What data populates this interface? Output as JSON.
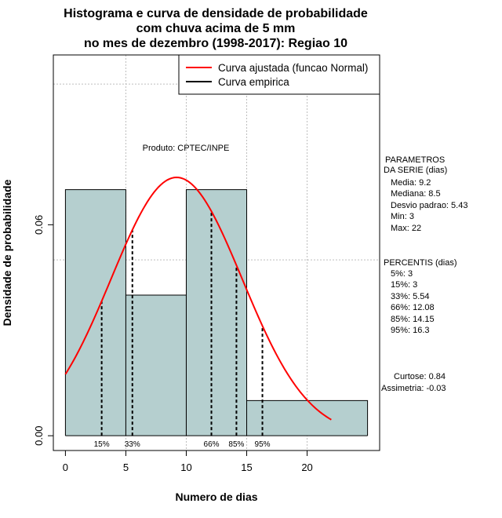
{
  "chart_data": {
    "type": "histogram",
    "title_lines": [
      "Histograma e curva de densidade de probabilidade",
      "com chuva acima de 5 mm",
      "no mes de dezembro (1998-2017): Regiao 10"
    ],
    "xlabel": "Numero de dias",
    "ylabel": "Densidade de probabilidade",
    "xlim": [
      -1,
      26
    ],
    "ylim": [
      -0.0042,
      0.1083
    ],
    "x_ticks": [
      0,
      5,
      10,
      15,
      20
    ],
    "x_tick_labels": [
      "0",
      "5",
      "10",
      "15",
      "20"
    ],
    "y_ticks": [
      0.0,
      0.06
    ],
    "y_tick_labels": [
      "0.00",
      "0.06"
    ],
    "grid_x": [
      5,
      10,
      15,
      20
    ],
    "grid_y": [
      0.05,
      0.1
    ],
    "bins": [
      {
        "start": 0,
        "end": 5,
        "density": 0.07
      },
      {
        "start": 5,
        "end": 10,
        "density": 0.04
      },
      {
        "start": 10,
        "end": 15,
        "density": 0.07
      },
      {
        "start": 15,
        "end": 25,
        "density": 0.01
      }
    ],
    "normal_curve": {
      "mean": 9.2,
      "sd": 5.43,
      "x_from": 0,
      "x_to": 22,
      "color": "#ff0000"
    },
    "bar_fill": "#b5cfcf",
    "percentiles": [
      {
        "label": "15%",
        "x": 3.0
      },
      {
        "label": "33%",
        "x": 5.54
      },
      {
        "label": "66%",
        "x": 12.08
      },
      {
        "label": "85%",
        "x": 14.15
      },
      {
        "label": "95%",
        "x": 16.3
      }
    ],
    "product_label": "Produto: CPTEC/INPE",
    "legend": {
      "position": "top-right",
      "entries": [
        {
          "label": "Curva ajustada (funcao Normal)",
          "color": "#ff0000"
        },
        {
          "label": "Curva empirica",
          "color": "#000000"
        }
      ]
    },
    "side_panel": {
      "params_title": [
        "PARAMETROS",
        "DA SERIE (dias)"
      ],
      "params": [
        "Media: 9.2",
        "Mediana: 8.5",
        "Desvio padrao: 5.43",
        "Min: 3",
        "Max: 22"
      ],
      "percentis_title": "PERCENTIS (dias)",
      "percentis": [
        "5%: 3",
        "15%: 3",
        "33%: 5.54",
        "66%: 12.08",
        "85%: 14.15",
        "95%: 16.3"
      ],
      "curtose": "Curtose: 0.84",
      "assimetria": "Assimetria: -0.03"
    }
  }
}
